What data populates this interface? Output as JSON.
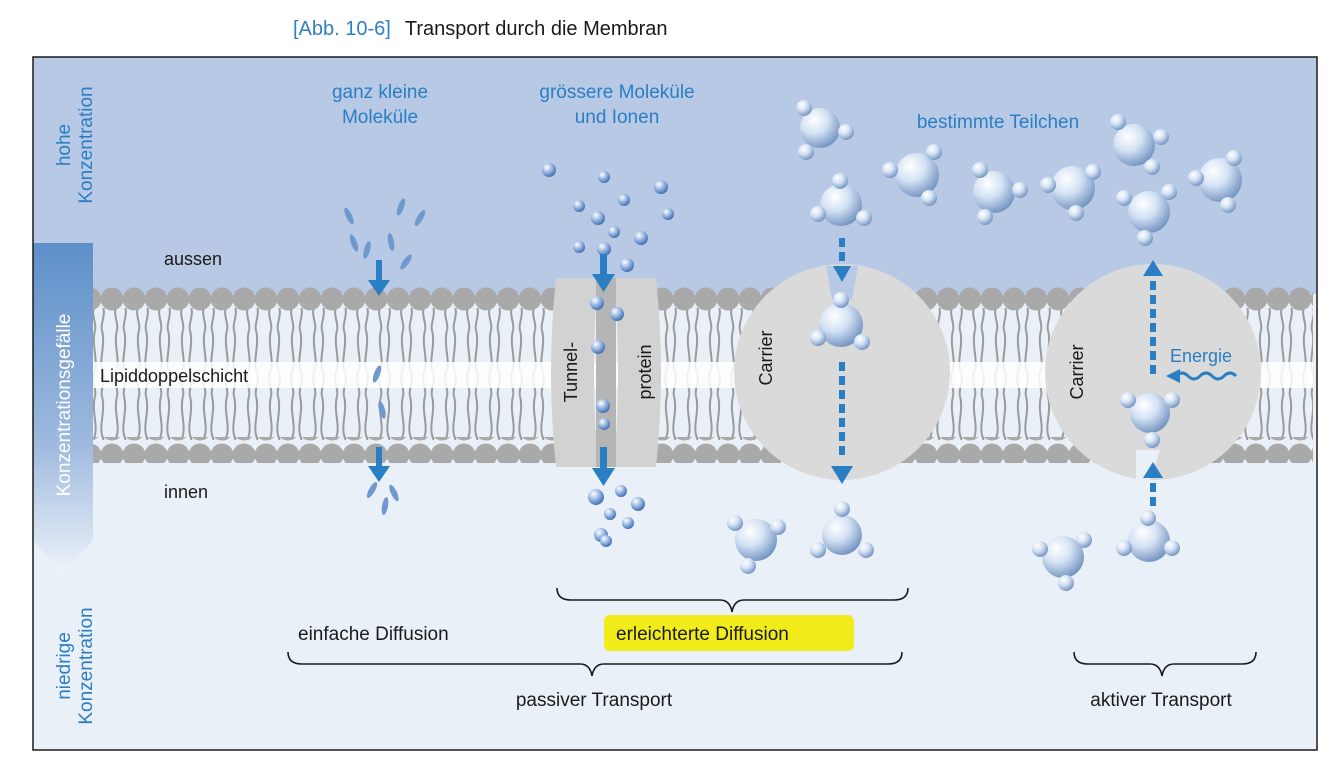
{
  "caption": {
    "ref": "[Abb. 10-6]",
    "title": "Transport durch die Membran"
  },
  "side": {
    "top_line1": "hohe",
    "top_line2": "Konzentration",
    "gradient": "Konzentrationsgefälle",
    "bottom_line1": "niedrige",
    "bottom_line2": "Konzentration"
  },
  "labels": {
    "outside": "aussen",
    "bilayer": "Lipiddoppelschicht",
    "inside": "innen",
    "small_line1": "ganz kleine",
    "small_line2": "Moleküle",
    "larger_line1": "grössere Moleküle",
    "larger_line2": "und Ionen",
    "specific": "bestimmte Teilchen",
    "tunnel1": "Tunnel-",
    "tunnel2": "protein",
    "carrier1": "Carrier",
    "carrier2": "Carrier",
    "energy": "Energie",
    "simple_diffusion": "einfache Diffusion",
    "facilitated_diffusion": "erleichterte Diffusion",
    "passive": "passiver Transport",
    "active": "aktiver Transport"
  },
  "colors": {
    "outside_bg": "#b8c9e6",
    "inside_bg": "#eaf0f8",
    "lipid": "#a9a9a9",
    "protein": "#d9d9d9",
    "arrow": "#2a7ec3",
    "text_blue": "#2a7ec3",
    "highlight": "#f2ec1a"
  }
}
